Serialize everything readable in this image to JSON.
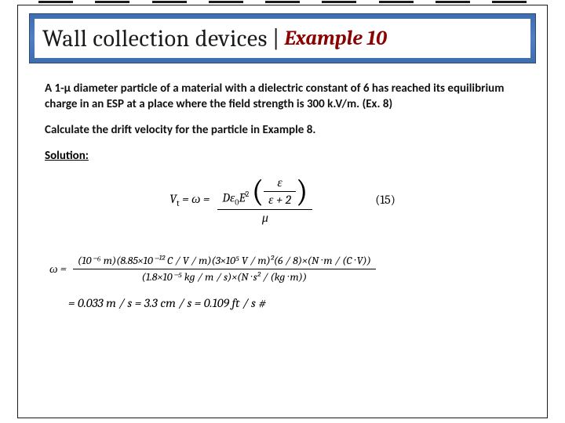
{
  "title": {
    "main": "Wall collection devices",
    "separator": "|",
    "sub": "Example 10"
  },
  "problem": {
    "p1": "A 1-μ diameter particle of a material with a dielectric constant of 6 has reached its equilibrium charge in an ESP at a place where the field strength is 300 k.V/m. (Ex. 8)",
    "p2": "Calculate the drift velocity for the particle in Example 8.",
    "solution_label": "Solution:"
  },
  "eq15": {
    "lhs": "V",
    "lhs_sub": "t",
    "eq": " = ω = ",
    "num_left": "Dε",
    "num_sub": "0",
    "num_E": "E",
    "num_exp": "2",
    "inner_num": "ε",
    "inner_den": "ε + 2",
    "den": "μ",
    "label": "(15)"
  },
  "eq_calc": {
    "lhs": "ω = ",
    "num": "(10⁻⁶ m)(8.85×10⁻¹² C / V / m)(3×10⁵ V / m)²(6 / 8)×(N · m / (C · V))",
    "den": "(1.8×10⁻⁵ kg / m / s)×(N · s² / (kg · m))"
  },
  "eq_result": {
    "text": "= 0.033 m / s = 3.3 cm / s = 0.109 ft / s     #"
  },
  "colors": {
    "banner_bg": "#4a78b8",
    "accent": "#8b0000",
    "text": "#111111",
    "border": "#1a1a1a"
  }
}
